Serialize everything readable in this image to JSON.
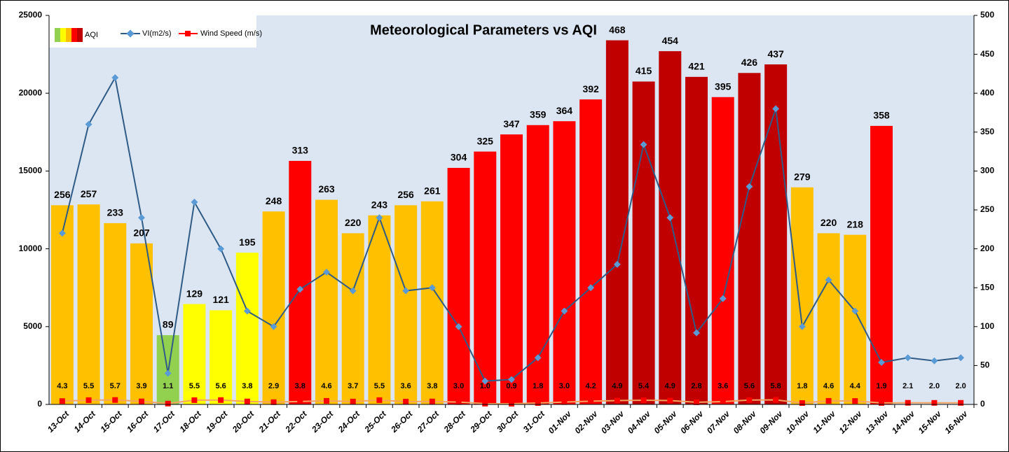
{
  "chart_data": {
    "type": "bar",
    "title": "Meteorological Parameters vs AQI",
    "categories": [
      "13-Oct",
      "14-Oct",
      "15-Oct",
      "16-Oct",
      "17-Oct",
      "18-Oct",
      "19-Oct",
      "20-Oct",
      "21-Oct",
      "22-Oct",
      "23-Oct",
      "24-Oct",
      "25-Oct",
      "26-Oct",
      "27-Oct",
      "28-Oct",
      "29-Oct",
      "30-Oct",
      "31-Oct",
      "01-Nov",
      "02-Nov",
      "03-Nov",
      "04-Nov",
      "05-Nov",
      "06-Nov",
      "07-Nov",
      "08-Nov",
      "09-Nov",
      "10-Nov",
      "11-Nov",
      "12-Nov",
      "13-Nov",
      "14-Nov",
      "15-Nov",
      "16-Nov"
    ],
    "series": [
      {
        "name": "AQI",
        "type": "bar",
        "axis": "y2",
        "values": [
          256,
          257,
          233,
          207,
          89,
          129,
          121,
          195,
          248,
          313,
          263,
          220,
          243,
          256,
          261,
          304,
          325,
          347,
          359,
          364,
          392,
          468,
          415,
          454,
          421,
          395,
          426,
          437,
          279,
          220,
          218,
          358,
          null,
          null,
          null
        ],
        "colors": [
          "#ffc000",
          "#ffc000",
          "#ffc000",
          "#ffc000",
          "#92d050",
          "#ffff00",
          "#ffff00",
          "#ffff00",
          "#ffc000",
          "#ff0000",
          "#ffc000",
          "#ffc000",
          "#ffc000",
          "#ffc000",
          "#ffc000",
          "#ff0000",
          "#ff0000",
          "#ff0000",
          "#ff0000",
          "#ff0000",
          "#ff0000",
          "#c00000",
          "#c00000",
          "#c00000",
          "#c00000",
          "#ff0000",
          "#c00000",
          "#c00000",
          "#ffc000",
          "#ffc000",
          "#ffc000",
          "#ff0000",
          null,
          null,
          null
        ]
      },
      {
        "name": "VI(m2/s)",
        "type": "line",
        "color": "#2f5b86",
        "marker_color": "#5b9bd5",
        "values": [
          11000,
          18000,
          21000,
          12000,
          2000,
          13000,
          10000,
          6000,
          5000,
          7400,
          8500,
          7300,
          12000,
          7300,
          7500,
          5000,
          1500,
          1600,
          3000,
          6000,
          7500,
          9000,
          16700,
          12000,
          4600,
          6800,
          14000,
          19000,
          5000,
          8000,
          6000,
          2700,
          3000,
          2800,
          3000
        ]
      },
      {
        "name": "Wind Speed (m/s)",
        "type": "line",
        "axis": "y2",
        "color": "#f4a460",
        "marker_color": "#ff0000",
        "values": [
          4.3,
          5.5,
          5.7,
          3.9,
          1.1,
          5.5,
          5.6,
          3.8,
          2.9,
          3.8,
          4.6,
          3.7,
          5.5,
          3.6,
          3.8,
          3.0,
          1.0,
          0.9,
          1.8,
          3.0,
          4.2,
          4.9,
          5.4,
          4.9,
          2.8,
          3.6,
          5.6,
          5.8,
          1.8,
          4.6,
          4.4,
          1.9,
          2.1,
          2.0,
          2.0
        ],
        "value_labels": [
          "4.3",
          "5.5",
          "5.7",
          "3.9",
          "1.1",
          "5.5",
          "5.6",
          "3.8",
          "2.9",
          "3.8",
          "4.6",
          "3.7",
          "5.5",
          "3.6",
          "3.8",
          "3.0",
          "1.0",
          "0.9",
          "1.8",
          "3.0",
          "4.2",
          "4.9",
          "5.4",
          "4.9",
          "2.8",
          "3.6",
          "5.6",
          "5.8",
          "1.8",
          "4.6",
          "4.4",
          "1.9",
          "2.1",
          "2.0",
          "2.0"
        ]
      }
    ],
    "ylim": [
      0,
      25000
    ],
    "yticks": [
      0,
      5000,
      10000,
      15000,
      20000,
      25000
    ],
    "y2lim": [
      0,
      500
    ],
    "y2ticks": [
      0,
      50,
      100,
      150,
      200,
      250,
      300,
      350,
      400,
      450,
      500
    ],
    "background": "#dce6f2"
  }
}
